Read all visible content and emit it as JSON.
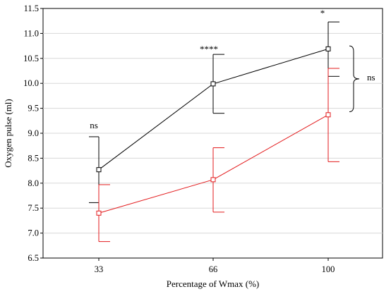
{
  "chart_data": {
    "type": "line",
    "title": "",
    "xlabel": "Percentage of Wmax (%)",
    "ylabel": "Oxygen pulse (ml)",
    "categories": [
      "33",
      "66",
      "100"
    ],
    "ylim": [
      6.5,
      11.5
    ],
    "yticks": [
      "6.5",
      "7.0",
      "7.5",
      "8.0",
      "8.5",
      "9.0",
      "9.5",
      "10.0",
      "10.5",
      "11.0",
      "11.5"
    ],
    "grid": "horizontal",
    "legend": "none",
    "series": [
      {
        "color": "#000000",
        "marker": "open-square",
        "values": [
          8.27,
          9.99,
          10.69
        ],
        "error_bar_ends": [
          [
            7.61,
            8.93
          ],
          [
            9.4,
            10.58
          ],
          [
            10.14,
            11.23
          ]
        ]
      },
      {
        "color": "#e31a1c",
        "marker": "open-square",
        "values": [
          7.4,
          8.07,
          9.37
        ],
        "error_bar_ends": [
          [
            6.83,
            7.97
          ],
          [
            7.42,
            8.71
          ],
          [
            8.43,
            10.3
          ]
        ]
      }
    ],
    "annotations": [
      {
        "category": "33",
        "text": "ns"
      },
      {
        "category": "66",
        "text": "****"
      },
      {
        "category": "100",
        "text": "*"
      },
      {
        "category": "100",
        "text": "ns",
        "bracket": "between-series"
      }
    ]
  }
}
